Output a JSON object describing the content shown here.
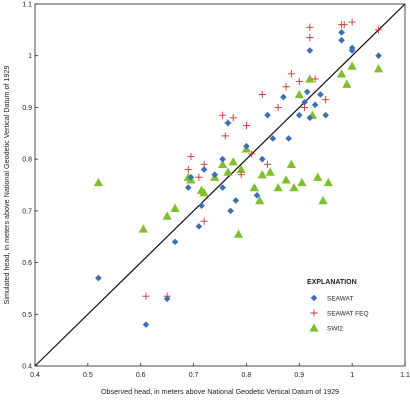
{
  "chart_data": {
    "type": "scatter",
    "title": "",
    "xlabel": "Observed head, in meters above National Geodetic Vertical Datum of 1929",
    "ylabel": "Simulated head, in meters above National Geodetic Vertical Datum of 1929",
    "xlim": [
      0.4,
      1.1
    ],
    "ylim": [
      0.4,
      1.1
    ],
    "x_ticks": [
      "0.4",
      "0.5",
      "0.6",
      "0.7",
      "0.8",
      "0.9",
      "1",
      "1.1"
    ],
    "y_ticks": [
      "0.4",
      "0.5",
      "0.6",
      "0.7",
      "0.8",
      "0.9",
      "1",
      "1.1"
    ],
    "grid": false,
    "reference_line": "1:1",
    "legend": {
      "title": "EXPLANATION",
      "placement": "bottom-right"
    },
    "series": [
      {
        "name": "SEAWAT",
        "marker": "diamond",
        "color": "#3b6fb6",
        "points": [
          [
            0.52,
            0.57
          ],
          [
            0.61,
            0.48
          ],
          [
            0.65,
            0.53
          ],
          [
            0.665,
            0.64
          ],
          [
            0.69,
            0.745
          ],
          [
            0.695,
            0.765
          ],
          [
            0.71,
            0.67
          ],
          [
            0.715,
            0.71
          ],
          [
            0.72,
            0.78
          ],
          [
            0.74,
            0.77
          ],
          [
            0.755,
            0.8
          ],
          [
            0.755,
            0.745
          ],
          [
            0.765,
            0.87
          ],
          [
            0.77,
            0.7
          ],
          [
            0.78,
            0.72
          ],
          [
            0.8,
            0.825
          ],
          [
            0.82,
            0.73
          ],
          [
            0.83,
            0.8
          ],
          [
            0.84,
            0.885
          ],
          [
            0.85,
            0.84
          ],
          [
            0.87,
            0.92
          ],
          [
            0.88,
            0.84
          ],
          [
            0.9,
            0.885
          ],
          [
            0.91,
            0.91
          ],
          [
            0.915,
            0.93
          ],
          [
            0.92,
            1.01
          ],
          [
            0.92,
            0.88
          ],
          [
            0.93,
            0.905
          ],
          [
            0.94,
            0.925
          ],
          [
            0.95,
            0.885
          ],
          [
            0.98,
            1.045
          ],
          [
            0.98,
            1.03
          ],
          [
            1.0,
            1.01
          ],
          [
            1.0,
            1.015
          ],
          [
            1.05,
            1.0
          ]
        ]
      },
      {
        "name": "SEAWAT FEQ",
        "marker": "plus",
        "color": "#cc3333",
        "points": [
          [
            0.61,
            0.535
          ],
          [
            0.65,
            0.535
          ],
          [
            0.69,
            0.78
          ],
          [
            0.695,
            0.805
          ],
          [
            0.71,
            0.765
          ],
          [
            0.72,
            0.79
          ],
          [
            0.72,
            0.68
          ],
          [
            0.755,
            0.885
          ],
          [
            0.76,
            0.845
          ],
          [
            0.765,
            0.87
          ],
          [
            0.775,
            0.88
          ],
          [
            0.79,
            0.77
          ],
          [
            0.8,
            0.865
          ],
          [
            0.81,
            0.81
          ],
          [
            0.83,
            0.925
          ],
          [
            0.84,
            0.79
          ],
          [
            0.86,
            0.9
          ],
          [
            0.875,
            0.94
          ],
          [
            0.885,
            0.965
          ],
          [
            0.9,
            0.95
          ],
          [
            0.91,
            0.9
          ],
          [
            0.92,
            1.055
          ],
          [
            0.92,
            1.035
          ],
          [
            0.93,
            0.955
          ],
          [
            0.95,
            0.915
          ],
          [
            0.98,
            1.06
          ],
          [
            0.985,
            1.06
          ],
          [
            1.0,
            1.065
          ],
          [
            1.05,
            1.05
          ]
        ]
      },
      {
        "name": "SWI2",
        "marker": "triangle",
        "color": "#7fbf2e",
        "points": [
          [
            0.52,
            0.755
          ],
          [
            0.605,
            0.665
          ],
          [
            0.65,
            0.69
          ],
          [
            0.665,
            0.705
          ],
          [
            0.69,
            0.765
          ],
          [
            0.695,
            0.76
          ],
          [
            0.715,
            0.74
          ],
          [
            0.72,
            0.735
          ],
          [
            0.74,
            0.765
          ],
          [
            0.755,
            0.79
          ],
          [
            0.765,
            0.775
          ],
          [
            0.775,
            0.795
          ],
          [
            0.785,
            0.655
          ],
          [
            0.79,
            0.78
          ],
          [
            0.8,
            0.82
          ],
          [
            0.815,
            0.745
          ],
          [
            0.825,
            0.72
          ],
          [
            0.83,
            0.77
          ],
          [
            0.845,
            0.775
          ],
          [
            0.86,
            0.745
          ],
          [
            0.875,
            0.76
          ],
          [
            0.885,
            0.79
          ],
          [
            0.89,
            0.745
          ],
          [
            0.9,
            0.925
          ],
          [
            0.905,
            0.755
          ],
          [
            0.92,
            0.955
          ],
          [
            0.925,
            0.885
          ],
          [
            0.935,
            0.765
          ],
          [
            0.945,
            0.72
          ],
          [
            0.955,
            0.755
          ],
          [
            0.98,
            0.965
          ],
          [
            0.99,
            0.945
          ],
          [
            1.0,
            0.98
          ],
          [
            1.05,
            0.975
          ]
        ]
      }
    ]
  }
}
